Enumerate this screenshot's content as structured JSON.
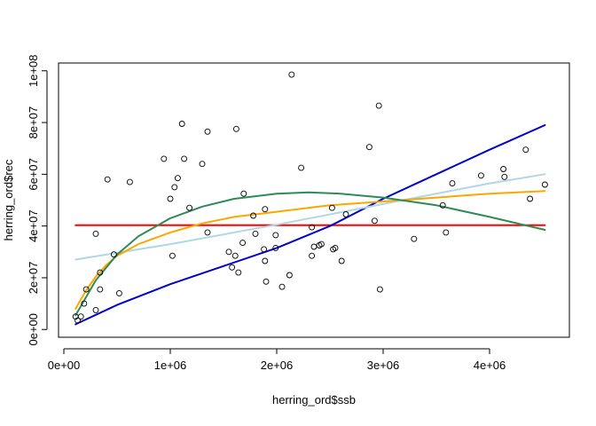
{
  "chart_data": {
    "type": "scatter",
    "title": "",
    "xlabel": "herring_ord$ssb",
    "ylabel": "herring_ord$rec",
    "xlim": [
      -50000,
      4750000
    ],
    "ylim": [
      -3000000,
      103000000
    ],
    "x_ticks": [
      0,
      1000000,
      2000000,
      3000000,
      4000000
    ],
    "x_tick_labels": [
      "0e+00",
      "1e+06",
      "2e+06",
      "3e+06",
      "4e+06"
    ],
    "y_ticks": [
      0,
      20000000,
      40000000,
      60000000,
      80000000,
      100000000
    ],
    "y_tick_labels": [
      "0e+00",
      "2e+07",
      "4e+07",
      "6e+07",
      "8e+07",
      "1e+08"
    ],
    "grid": false,
    "points": [
      {
        "x": 110000,
        "y": 5000000
      },
      {
        "x": 130000,
        "y": 3500000
      },
      {
        "x": 160000,
        "y": 5000000
      },
      {
        "x": 190000,
        "y": 10000000
      },
      {
        "x": 210000,
        "y": 15500000
      },
      {
        "x": 300000,
        "y": 37000000
      },
      {
        "x": 300000,
        "y": 7500000
      },
      {
        "x": 340000,
        "y": 15500000
      },
      {
        "x": 340000,
        "y": 22000000
      },
      {
        "x": 410000,
        "y": 58000000
      },
      {
        "x": 470000,
        "y": 29000000
      },
      {
        "x": 520000,
        "y": 14000000
      },
      {
        "x": 620000,
        "y": 57000000
      },
      {
        "x": 940000,
        "y": 66000000
      },
      {
        "x": 1000000,
        "y": 50500000
      },
      {
        "x": 1020000,
        "y": 28500000
      },
      {
        "x": 1040000,
        "y": 55000000
      },
      {
        "x": 1070000,
        "y": 58500000
      },
      {
        "x": 1110000,
        "y": 79500000
      },
      {
        "x": 1130000,
        "y": 66000000
      },
      {
        "x": 1180000,
        "y": 47000000
      },
      {
        "x": 1300000,
        "y": 64000000
      },
      {
        "x": 1350000,
        "y": 76500000
      },
      {
        "x": 1350000,
        "y": 37500000
      },
      {
        "x": 1550000,
        "y": 30000000
      },
      {
        "x": 1580000,
        "y": 24000000
      },
      {
        "x": 1610000,
        "y": 28500000
      },
      {
        "x": 1620000,
        "y": 77500000
      },
      {
        "x": 1640000,
        "y": 22000000
      },
      {
        "x": 1680000,
        "y": 33500000
      },
      {
        "x": 1690000,
        "y": 52500000
      },
      {
        "x": 1780000,
        "y": 44000000
      },
      {
        "x": 1800000,
        "y": 37000000
      },
      {
        "x": 1880000,
        "y": 31000000
      },
      {
        "x": 1890000,
        "y": 46500000
      },
      {
        "x": 1890000,
        "y": 26500000
      },
      {
        "x": 1900000,
        "y": 18500000
      },
      {
        "x": 1990000,
        "y": 31500000
      },
      {
        "x": 1990000,
        "y": 36500000
      },
      {
        "x": 2050000,
        "y": 16500000
      },
      {
        "x": 2120000,
        "y": 21000000
      },
      {
        "x": 2140000,
        "y": 98500000
      },
      {
        "x": 2230000,
        "y": 62500000
      },
      {
        "x": 2330000,
        "y": 28500000
      },
      {
        "x": 2330000,
        "y": 39500000
      },
      {
        "x": 2350000,
        "y": 32000000
      },
      {
        "x": 2400000,
        "y": 32500000
      },
      {
        "x": 2420000,
        "y": 33000000
      },
      {
        "x": 2520000,
        "y": 47000000
      },
      {
        "x": 2530000,
        "y": 31000000
      },
      {
        "x": 2550000,
        "y": 31500000
      },
      {
        "x": 2610000,
        "y": 26500000
      },
      {
        "x": 2650000,
        "y": 44500000
      },
      {
        "x": 2870000,
        "y": 70500000
      },
      {
        "x": 2920000,
        "y": 42000000
      },
      {
        "x": 2960000,
        "y": 86500000
      },
      {
        "x": 2970000,
        "y": 15500000
      },
      {
        "x": 3290000,
        "y": 35000000
      },
      {
        "x": 3560000,
        "y": 48000000
      },
      {
        "x": 3590000,
        "y": 37500000
      },
      {
        "x": 3650000,
        "y": 56500000
      },
      {
        "x": 3920000,
        "y": 59500000
      },
      {
        "x": 4130000,
        "y": 62000000
      },
      {
        "x": 4140000,
        "y": 59000000
      },
      {
        "x": 4340000,
        "y": 69500000
      },
      {
        "x": 4380000,
        "y": 50500000
      },
      {
        "x": 4520000,
        "y": 56000000
      }
    ],
    "series": [
      {
        "type": "line",
        "color": "#ff0000",
        "x": [
          110000,
          4520000
        ],
        "y": [
          40300000,
          40300000
        ]
      },
      {
        "type": "line",
        "color": "#0000cd",
        "x": [
          110000,
          500000,
          1000000,
          1500000,
          2000000,
          2500000,
          3000000,
          3500000,
          4000000,
          4520000
        ],
        "y": [
          2000000,
          9500000,
          17500000,
          24500000,
          31500000,
          40000000,
          50500000,
          60000000,
          69500000,
          79000000
        ]
      },
      {
        "type": "line",
        "color": "#add8e6",
        "x": [
          110000,
          1000000,
          2000000,
          3000000,
          4000000,
          4520000
        ],
        "y": [
          27000000,
          33000000,
          40500000,
          48500000,
          56500000,
          60000000
        ]
      },
      {
        "type": "line",
        "color": "#ffa500",
        "x": [
          110000,
          200000,
          300000,
          400000,
          500000,
          700000,
          1000000,
          1300000,
          1600000,
          2000000,
          2500000,
          3000000,
          3500000,
          4000000,
          4520000
        ],
        "y": [
          8000000,
          14500000,
          20500000,
          25000000,
          28500000,
          33000000,
          37500000,
          41000000,
          43500000,
          45500000,
          48000000,
          49500000,
          51000000,
          52500000,
          53500000
        ]
      },
      {
        "type": "line",
        "color": "#2e8b57",
        "x": [
          110000,
          300000,
          500000,
          700000,
          1000000,
          1300000,
          1600000,
          2000000,
          2300000,
          2600000,
          3000000,
          3500000,
          4000000,
          4520000
        ],
        "y": [
          5500000,
          19000000,
          29000000,
          36000000,
          43000000,
          47500000,
          50500000,
          52500000,
          53000000,
          52500000,
          51000000,
          48000000,
          43500000,
          38500000
        ]
      }
    ]
  }
}
